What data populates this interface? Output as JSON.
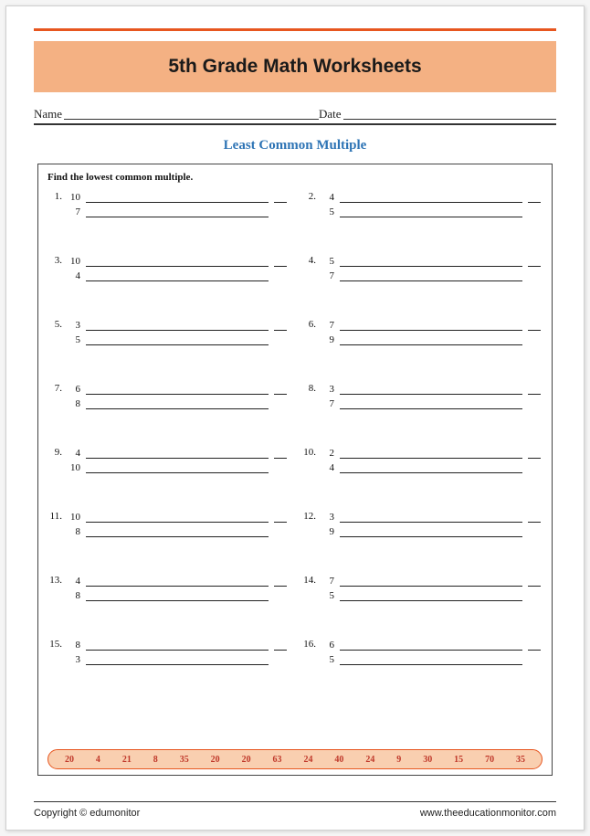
{
  "colors": {
    "top_rule": "#e7561f",
    "title_band_bg": "#f4b183",
    "subtitle": "#2e74b5",
    "answer_strip_bg": "#f9cfb0",
    "answer_strip_border": "#e7561f",
    "answer_text": "#c0392b"
  },
  "header": {
    "title": "5th Grade Math Worksheets",
    "name_label": "Name",
    "date_label": "Date"
  },
  "worksheet": {
    "subtitle": "Least Common Multiple",
    "instruction": "Find the lowest common multiple.",
    "problems": [
      {
        "n": "1.",
        "a": "10",
        "b": "7"
      },
      {
        "n": "2.",
        "a": "4",
        "b": "5"
      },
      {
        "n": "3.",
        "a": "10",
        "b": "4"
      },
      {
        "n": "4.",
        "a": "5",
        "b": "7"
      },
      {
        "n": "5.",
        "a": "3",
        "b": "5"
      },
      {
        "n": "6.",
        "a": "7",
        "b": "9"
      },
      {
        "n": "7.",
        "a": "6",
        "b": "8"
      },
      {
        "n": "8.",
        "a": "3",
        "b": "7"
      },
      {
        "n": "9.",
        "a": "4",
        "b": "10"
      },
      {
        "n": "10.",
        "a": "2",
        "b": "4"
      },
      {
        "n": "11.",
        "a": "10",
        "b": "8"
      },
      {
        "n": "12.",
        "a": "3",
        "b": "9"
      },
      {
        "n": "13.",
        "a": "4",
        "b": "8"
      },
      {
        "n": "14.",
        "a": "7",
        "b": "5"
      },
      {
        "n": "15.",
        "a": "8",
        "b": "3"
      },
      {
        "n": "16.",
        "a": "6",
        "b": "5"
      }
    ],
    "answer_bank": [
      "20",
      "4",
      "21",
      "8",
      "35",
      "20",
      "20",
      "63",
      "24",
      "40",
      "24",
      "9",
      "30",
      "15",
      "70",
      "35"
    ]
  },
  "footer": {
    "copyright": "Copyright © edumonitor",
    "url": "www.theeducationmonitor.com"
  }
}
